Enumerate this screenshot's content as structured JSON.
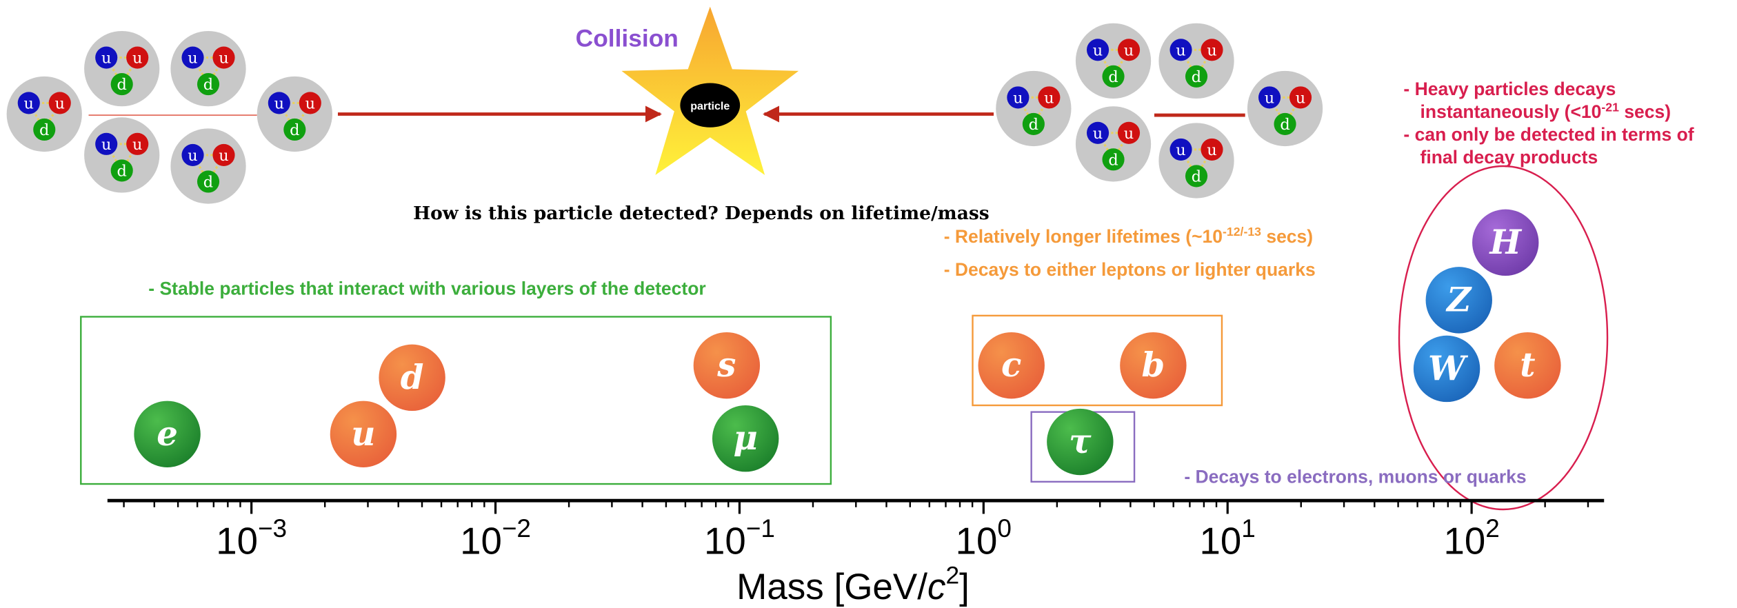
{
  "collision": "Collision",
  "star_label": "particle",
  "proton_quarks": [
    "u",
    "u",
    "d"
  ],
  "question": "How is this particle detected? Depends on lifetime/mass",
  "stable_note": "- Stable particles that interact with various layers of the detector",
  "medium_notes": [
    {
      "parts": [
        "- Relatively longer lifetimes (~10",
        "-12/-13",
        " secs)"
      ]
    },
    {
      "parts": [
        "- Decays to either leptons or lighter quarks"
      ]
    }
  ],
  "tau_note": "- Decays to electrons, muons or quarks",
  "heavy_notes": [
    {
      "parts": [
        "- Heavy particles decays"
      ]
    },
    {
      "parts": [
        "instantaneously (<10",
        "-21",
        " secs)"
      ]
    },
    {
      "parts": [
        "- can only be detected in terms of"
      ]
    },
    {
      "parts": [
        "final decay products"
      ]
    }
  ],
  "particles": [
    "e",
    "u",
    "d",
    "s",
    "μ",
    "c",
    "b",
    "τ",
    "H",
    "Z",
    "W",
    "t"
  ],
  "axis": {
    "label_parts": [
      "Mass [GeV/",
      "c",
      "2",
      "]"
    ],
    "scale": "log",
    "xlim": [
      0.000257,
      349
    ],
    "ticks": [
      {
        "value": 0.001,
        "base": "10",
        "exponent": "−3"
      },
      {
        "value": 0.01,
        "base": "10",
        "exponent": "−2"
      },
      {
        "value": 0.1,
        "base": "10",
        "exponent": "−1"
      },
      {
        "value": 1,
        "base": "10",
        "exponent": "0"
      },
      {
        "value": 10,
        "base": "10",
        "exponent": "1"
      },
      {
        "value": 100,
        "base": "10",
        "exponent": "2"
      }
    ]
  }
}
